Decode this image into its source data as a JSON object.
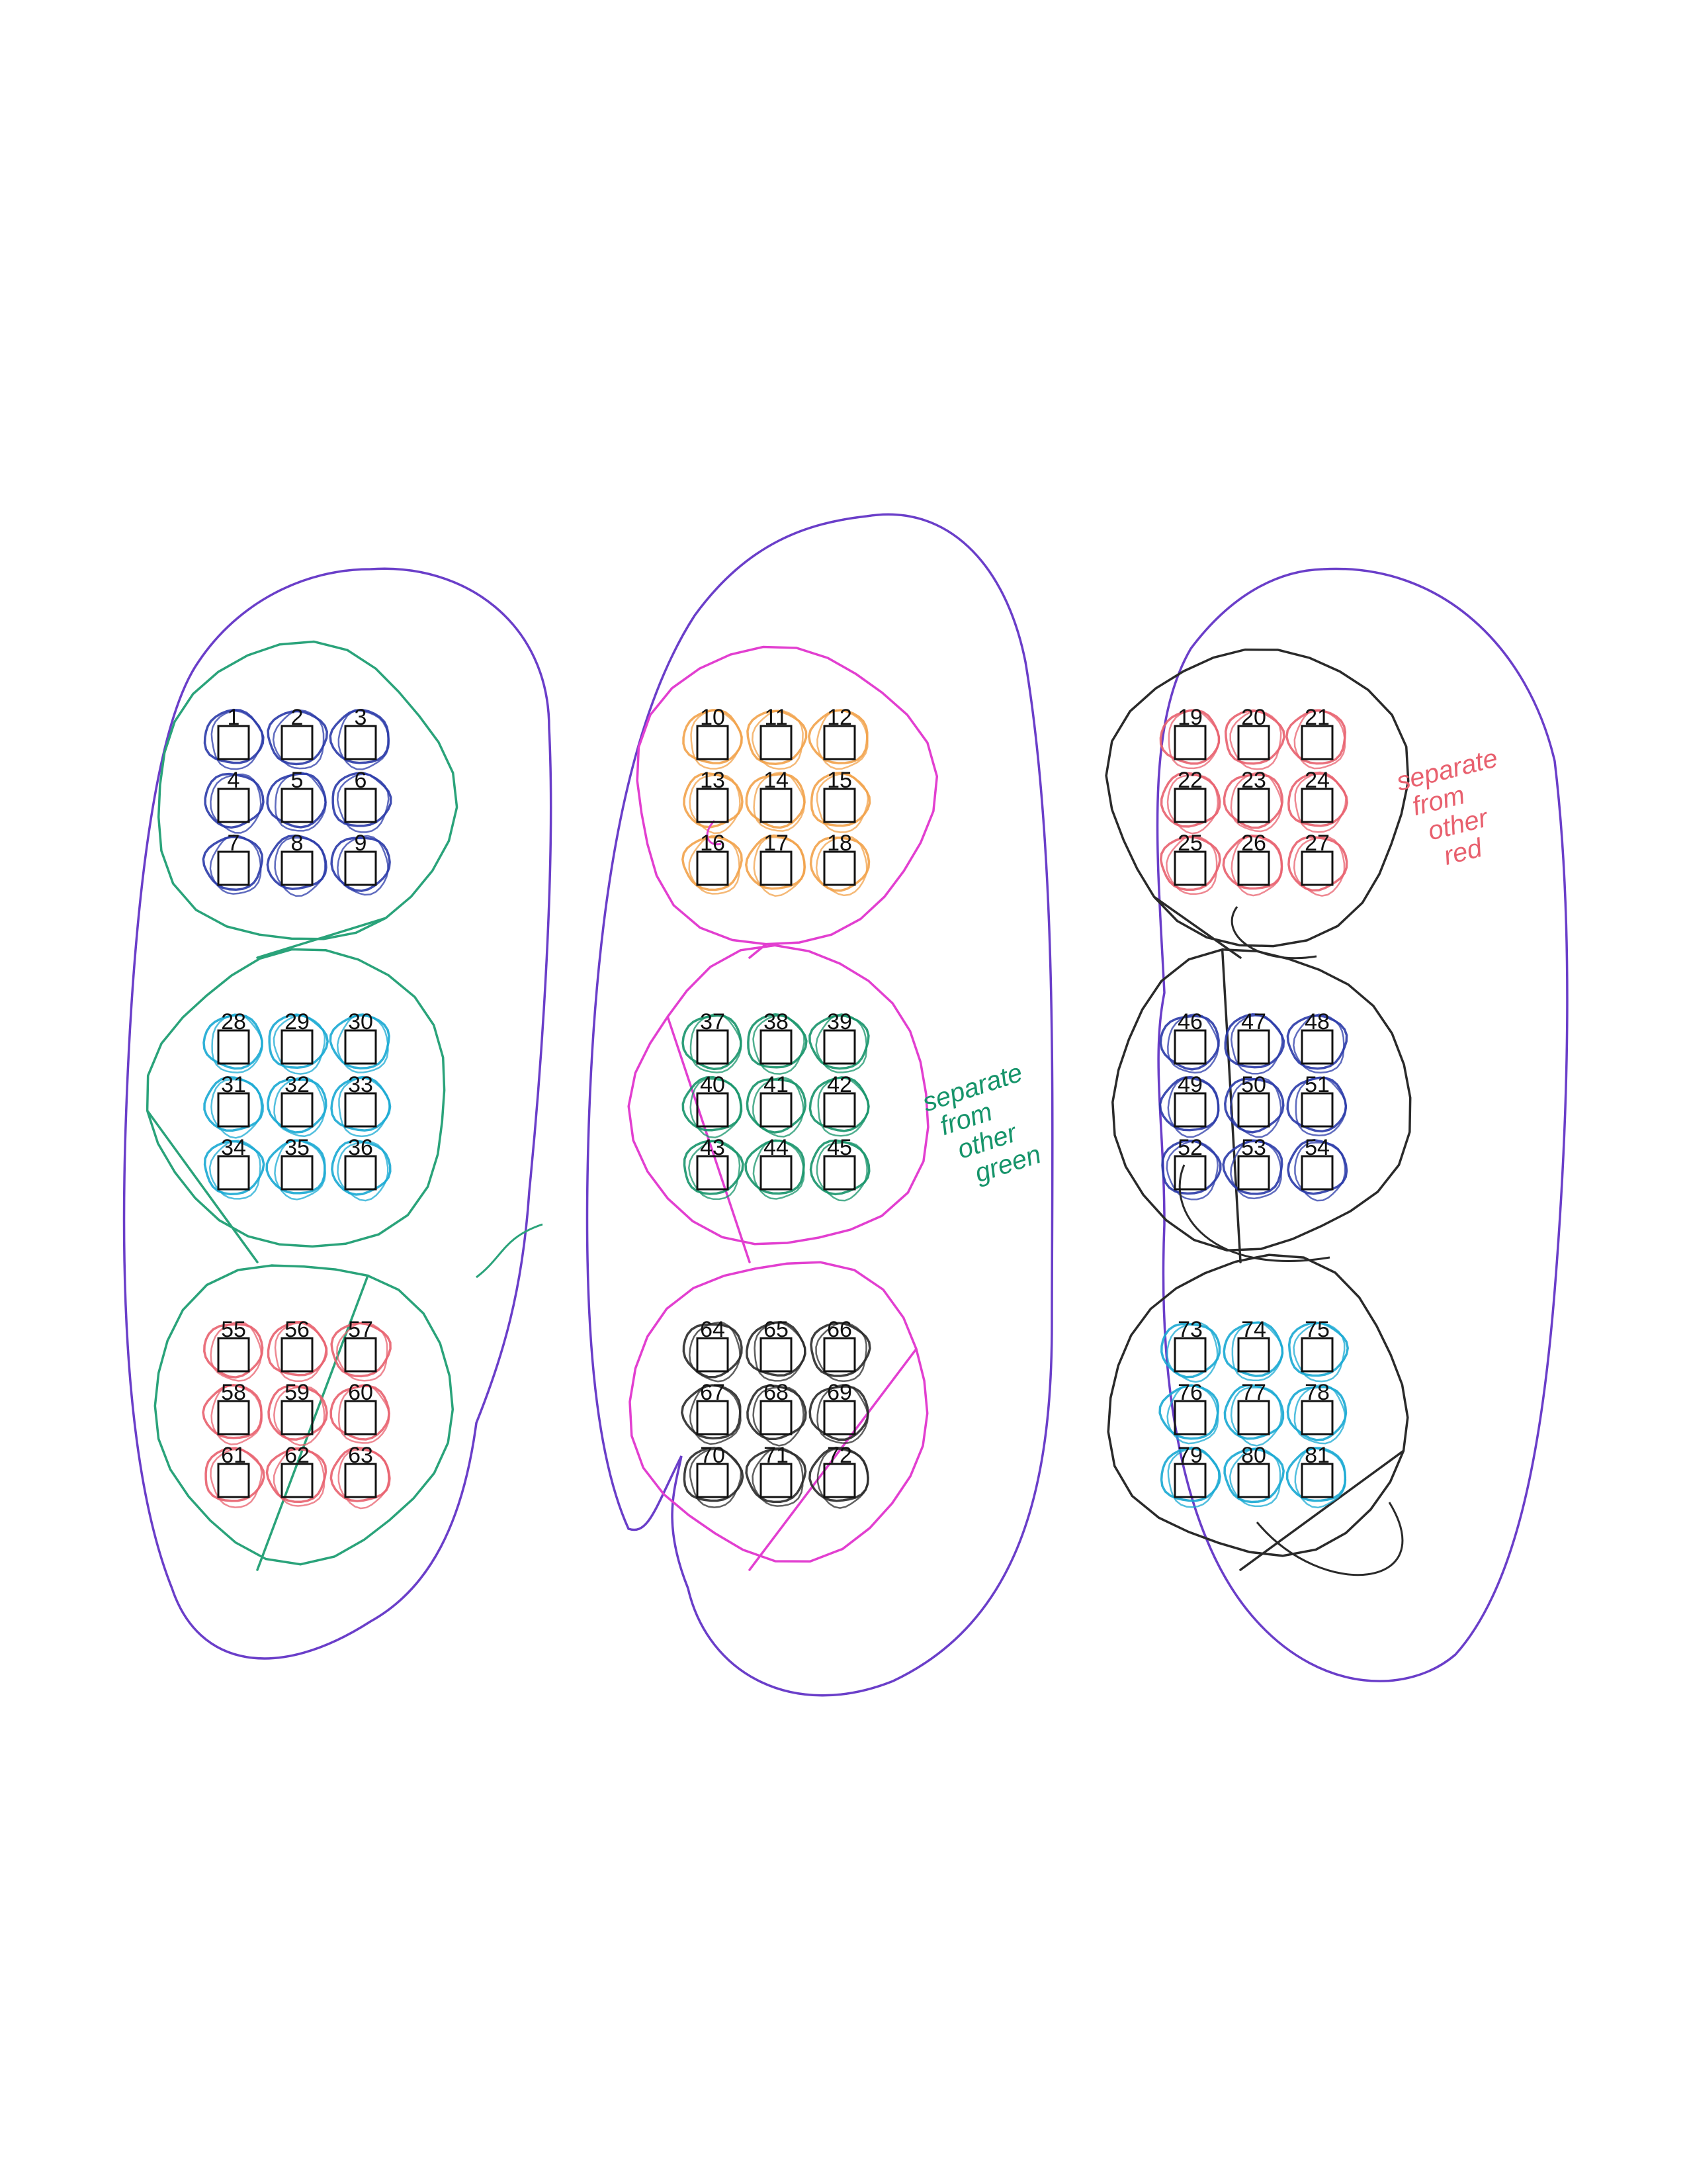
{
  "colors": {
    "purple": "#6a3ec9",
    "teal": "#2aa37a",
    "magenta": "#e23fd0",
    "navy": "#2a3aa8",
    "cyan": "#18a9d3",
    "red": "#e8606e",
    "orange": "#f2a24a",
    "green": "#16946a",
    "black": "#2a2a2a"
  },
  "numbers": [
    "1",
    "2",
    "3",
    "4",
    "5",
    "6",
    "7",
    "8",
    "9",
    "10",
    "11",
    "12",
    "13",
    "14",
    "15",
    "16",
    "17",
    "18",
    "19",
    "20",
    "21",
    "22",
    "23",
    "24",
    "25",
    "26",
    "27",
    "28",
    "29",
    "30",
    "31",
    "32",
    "33",
    "34",
    "35",
    "36",
    "37",
    "38",
    "39",
    "40",
    "41",
    "42",
    "43",
    "44",
    "45",
    "46",
    "47",
    "48",
    "49",
    "50",
    "51",
    "52",
    "53",
    "54",
    "55",
    "56",
    "57",
    "58",
    "59",
    "60",
    "61",
    "62",
    "63",
    "64",
    "65",
    "66",
    "67",
    "68",
    "69",
    "70",
    "71",
    "72",
    "73",
    "74",
    "75",
    "76",
    "77",
    "78",
    "79",
    "80",
    "81"
  ],
  "groups": [
    {
      "id": "A",
      "first": 1,
      "item_color": "navy",
      "ring_color": "teal"
    },
    {
      "id": "B",
      "first": 10,
      "item_color": "orange",
      "ring_color": "magenta"
    },
    {
      "id": "C",
      "first": 19,
      "item_color": "red",
      "ring_color": "black"
    },
    {
      "id": "D",
      "first": 28,
      "item_color": "cyan",
      "ring_color": "teal"
    },
    {
      "id": "E",
      "first": 37,
      "item_color": "green",
      "ring_color": "magenta"
    },
    {
      "id": "F",
      "first": 46,
      "item_color": "navy",
      "ring_color": "black"
    },
    {
      "id": "G",
      "first": 55,
      "item_color": "red",
      "ring_color": "teal"
    },
    {
      "id": "H",
      "first": 64,
      "item_color": "black",
      "ring_color": "magenta"
    },
    {
      "id": "I",
      "first": 73,
      "item_color": "cyan",
      "ring_color": "black"
    }
  ],
  "columns": [
    {
      "id": "left",
      "color": "purple"
    },
    {
      "id": "middle",
      "color": "purple"
    },
    {
      "id": "right",
      "color": "purple"
    }
  ],
  "annotations": [
    {
      "id": "note-green",
      "text_lines": [
        "separate",
        "from",
        "other",
        "green"
      ],
      "color": "green"
    },
    {
      "id": "note-red",
      "text_lines": [
        "separate",
        "from",
        "other",
        "red"
      ],
      "color": "red"
    }
  ]
}
